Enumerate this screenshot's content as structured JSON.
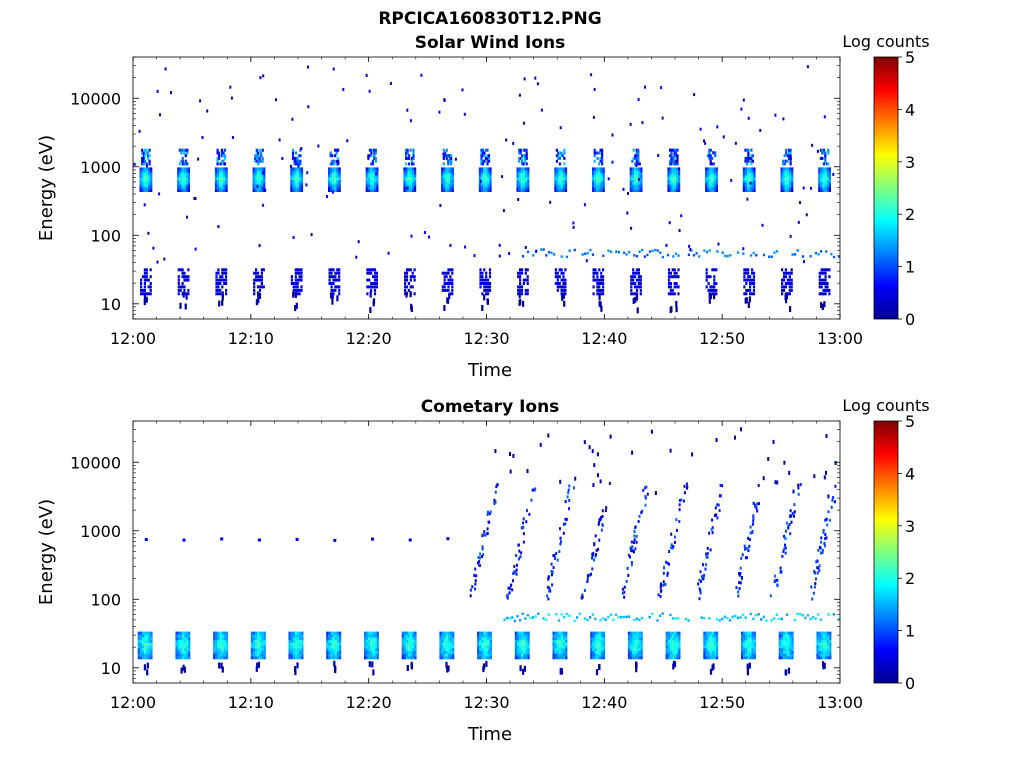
{
  "figure": {
    "title": "RPCICA160830T12.PNG"
  },
  "chart_data": [
    {
      "type": "heatmap",
      "title": "Solar Wind Ions",
      "xlabel": "Time",
      "ylabel": "Energy (eV)",
      "y_scale": "log",
      "x_ticks": [
        "12:00",
        "12:10",
        "12:20",
        "12:30",
        "12:40",
        "12:50",
        "13:00"
      ],
      "y_ticks": [
        "10",
        "100",
        "1000",
        "10000"
      ],
      "xlim": [
        "12:00",
        "13:00"
      ],
      "ylim": [
        6,
        40000
      ],
      "colorbar": {
        "label": "Log counts",
        "ticks": [
          "0",
          "1",
          "2",
          "3",
          "4",
          "5"
        ],
        "range": [
          0,
          5
        ]
      },
      "colorscale": "jet",
      "sweep_times_min": [
        1.0,
        4.2,
        7.4,
        10.6,
        13.8,
        17.0,
        20.2,
        23.4,
        26.6,
        29.8,
        33.0,
        36.2,
        39.4,
        42.6,
        45.8,
        49.0,
        52.2,
        55.4,
        58.6
      ],
      "features": [
        {
          "name": "solar wind core",
          "energy_eV": [
            450,
            1000
          ],
          "log_counts": 2.2
        },
        {
          "name": "solar wind alpha",
          "energy_eV": [
            1100,
            1800
          ],
          "log_counts": 1.4
        },
        {
          "name": "low energy band",
          "energy_eV": [
            14,
            32
          ],
          "log_counts": 0.3
        },
        {
          "name": "line after 12:33",
          "energy_eV": [
            48,
            62
          ],
          "log_counts": 0.9
        }
      ]
    },
    {
      "type": "heatmap",
      "title": "Cometary Ions",
      "xlabel": "Time",
      "ylabel": "Energy (eV)",
      "y_scale": "log",
      "x_ticks": [
        "12:00",
        "12:10",
        "12:20",
        "12:30",
        "12:40",
        "12:50",
        "13:00"
      ],
      "y_ticks": [
        "10",
        "100",
        "1000",
        "10000"
      ],
      "xlim": [
        "12:00",
        "13:00"
      ],
      "ylim": [
        6,
        40000
      ],
      "colorbar": {
        "label": "Log counts",
        "ticks": [
          "0",
          "1",
          "2",
          "3",
          "4",
          "5"
        ],
        "range": [
          0,
          5
        ]
      },
      "colorscale": "jet",
      "sweep_times_min": [
        1.0,
        4.2,
        7.4,
        10.6,
        13.8,
        17.0,
        20.2,
        23.4,
        26.6,
        29.8,
        33.0,
        36.2,
        39.4,
        42.6,
        45.8,
        49.0,
        52.2,
        55.4,
        58.6
      ],
      "features": [
        {
          "name": "low energy band",
          "energy_eV": [
            14,
            34
          ],
          "log_counts": 2.0
        },
        {
          "name": "line near 800 eV",
          "energy_eV": [
            700,
            900
          ],
          "log_counts": 0.8
        },
        {
          "name": "line after 12:31",
          "energy_eV": [
            48,
            62
          ],
          "log_counts": 1.3
        },
        {
          "name": "dispersed ions after 12:30",
          "energy_eV": [
            100,
            5000
          ],
          "log_counts": 0.9
        }
      ]
    }
  ]
}
